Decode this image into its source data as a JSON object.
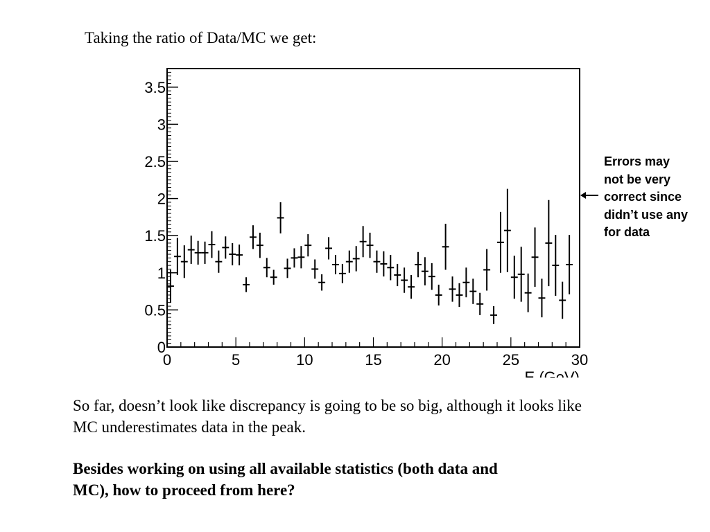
{
  "slide": {
    "heading": "Taking the ratio of Data/MC we get:",
    "annotation_lines": [
      "Errors may",
      "not be very",
      "correct since",
      "didn’t use any",
      "for data"
    ],
    "paragraph_lines": [
      "So far, doesn’t look like discrepancy is going to be so big, although it looks like",
      "MC underestimates data in the peak."
    ],
    "question_lines": [
      "Besides working on using all available statistics (both data and",
      "MC), how to proceed from here?"
    ]
  },
  "chart_data": {
    "type": "scatter",
    "xlabel": "E (GeV)",
    "ylabel": "",
    "xlim": [
      0,
      30
    ],
    "ylim": [
      0,
      3.75
    ],
    "x_ticks": [
      0,
      5,
      10,
      15,
      20,
      25,
      30
    ],
    "x_tick_labels": [
      "0",
      "5",
      "10",
      "15",
      "20",
      "25",
      "30"
    ],
    "y_ticks": [
      0,
      0.5,
      1,
      1.5,
      2,
      2.5,
      3,
      3.5
    ],
    "y_tick_labels": [
      "0",
      "0.5",
      "1",
      "1.5",
      "2",
      "2.5",
      "3",
      "3.5"
    ],
    "bin_width": 0.5,
    "points": [
      {
        "x": 0.25,
        "y": 0.82,
        "err": 0.22
      },
      {
        "x": 0.75,
        "y": 1.22,
        "err": 0.25
      },
      {
        "x": 1.25,
        "y": 1.15,
        "err": 0.22
      },
      {
        "x": 1.75,
        "y": 1.31,
        "err": 0.19
      },
      {
        "x": 2.25,
        "y": 1.27,
        "err": 0.16
      },
      {
        "x": 2.75,
        "y": 1.27,
        "err": 0.15
      },
      {
        "x": 3.25,
        "y": 1.38,
        "err": 0.18
      },
      {
        "x": 3.75,
        "y": 1.15,
        "err": 0.15
      },
      {
        "x": 4.25,
        "y": 1.34,
        "err": 0.15
      },
      {
        "x": 4.75,
        "y": 1.25,
        "err": 0.15
      },
      {
        "x": 5.25,
        "y": 1.24,
        "err": 0.14
      },
      {
        "x": 5.75,
        "y": 0.84,
        "err": 0.1
      },
      {
        "x": 6.25,
        "y": 1.48,
        "err": 0.16
      },
      {
        "x": 6.75,
        "y": 1.37,
        "err": 0.17
      },
      {
        "x": 7.25,
        "y": 1.07,
        "err": 0.13
      },
      {
        "x": 7.75,
        "y": 0.94,
        "err": 0.1
      },
      {
        "x": 8.25,
        "y": 1.74,
        "err": 0.21
      },
      {
        "x": 8.75,
        "y": 1.06,
        "err": 0.13
      },
      {
        "x": 9.25,
        "y": 1.2,
        "err": 0.13
      },
      {
        "x": 9.75,
        "y": 1.21,
        "err": 0.15
      },
      {
        "x": 10.25,
        "y": 1.37,
        "err": 0.15
      },
      {
        "x": 10.75,
        "y": 1.05,
        "err": 0.13
      },
      {
        "x": 11.25,
        "y": 0.87,
        "err": 0.11
      },
      {
        "x": 11.75,
        "y": 1.33,
        "err": 0.15
      },
      {
        "x": 12.25,
        "y": 1.11,
        "err": 0.13
      },
      {
        "x": 12.75,
        "y": 0.99,
        "err": 0.13
      },
      {
        "x": 13.25,
        "y": 1.15,
        "err": 0.15
      },
      {
        "x": 13.75,
        "y": 1.19,
        "err": 0.17
      },
      {
        "x": 14.25,
        "y": 1.42,
        "err": 0.21
      },
      {
        "x": 14.75,
        "y": 1.37,
        "err": 0.17
      },
      {
        "x": 15.25,
        "y": 1.15,
        "err": 0.15
      },
      {
        "x": 15.75,
        "y": 1.12,
        "err": 0.17
      },
      {
        "x": 16.25,
        "y": 1.07,
        "err": 0.17
      },
      {
        "x": 16.75,
        "y": 0.97,
        "err": 0.15
      },
      {
        "x": 17.25,
        "y": 0.9,
        "err": 0.17
      },
      {
        "x": 17.75,
        "y": 0.81,
        "err": 0.16
      },
      {
        "x": 18.25,
        "y": 1.11,
        "err": 0.17
      },
      {
        "x": 18.75,
        "y": 1.02,
        "err": 0.19
      },
      {
        "x": 19.25,
        "y": 0.95,
        "err": 0.18
      },
      {
        "x": 19.75,
        "y": 0.7,
        "err": 0.14
      },
      {
        "x": 20.25,
        "y": 1.35,
        "err": 0.31
      },
      {
        "x": 20.75,
        "y": 0.78,
        "err": 0.17
      },
      {
        "x": 21.25,
        "y": 0.7,
        "err": 0.16
      },
      {
        "x": 21.75,
        "y": 0.87,
        "err": 0.2
      },
      {
        "x": 22.25,
        "y": 0.75,
        "err": 0.17
      },
      {
        "x": 22.75,
        "y": 0.58,
        "err": 0.15
      },
      {
        "x": 23.25,
        "y": 1.04,
        "err": 0.28
      },
      {
        "x": 23.75,
        "y": 0.43,
        "err": 0.12
      },
      {
        "x": 24.25,
        "y": 1.41,
        "err": 0.41
      },
      {
        "x": 24.75,
        "y": 1.57,
        "err": 0.56
      },
      {
        "x": 25.25,
        "y": 0.94,
        "err": 0.29
      },
      {
        "x": 25.75,
        "y": 0.98,
        "err": 0.37
      },
      {
        "x": 26.25,
        "y": 0.73,
        "err": 0.26
      },
      {
        "x": 26.75,
        "y": 1.21,
        "err": 0.4
      },
      {
        "x": 27.25,
        "y": 0.66,
        "err": 0.26
      },
      {
        "x": 27.75,
        "y": 1.4,
        "err": 0.58
      },
      {
        "x": 28.25,
        "y": 1.1,
        "err": 0.41
      },
      {
        "x": 28.75,
        "y": 0.63,
        "err": 0.25
      },
      {
        "x": 29.25,
        "y": 1.11,
        "err": 0.4
      }
    ]
  }
}
